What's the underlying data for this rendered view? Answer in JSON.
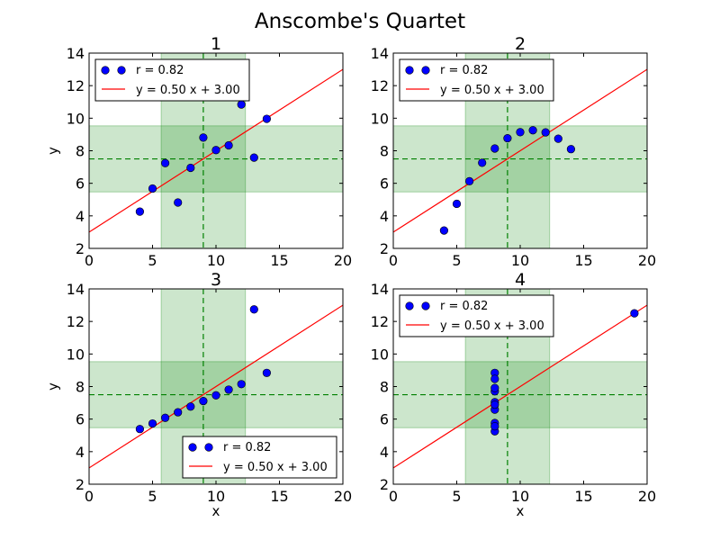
{
  "figure_title": "Anscombe's Quartet",
  "colors": {
    "points": "#0000ff",
    "fit_line": "#ff0000",
    "band": "#008000",
    "mean_line": "#008000"
  },
  "chart_data": [
    {
      "type": "scatter",
      "title": "1",
      "xlabel": "",
      "ylabel": "y",
      "xlim": [
        0,
        20
      ],
      "ylim": [
        2,
        14
      ],
      "x_ticks": [
        "0",
        "5",
        "10",
        "15",
        "20"
      ],
      "y_ticks": [
        "2",
        "4",
        "6",
        "8",
        "10",
        "12",
        "14"
      ],
      "series": [
        {
          "name": "r = 0.82",
          "x": [
            10,
            8,
            13,
            9,
            11,
            14,
            6,
            4,
            12,
            7,
            5
          ],
          "y": [
            8.04,
            6.95,
            7.58,
            8.81,
            8.33,
            9.96,
            7.24,
            4.26,
            10.84,
            4.82,
            5.68
          ]
        }
      ],
      "fit_line": {
        "label": "y = 0.50 x + 3.00",
        "slope": 0.5,
        "intercept": 3.0
      },
      "mean_x": 9.0,
      "std_x": 3.32,
      "mean_y": 7.5,
      "std_y": 2.03,
      "legend_position": "upper-left"
    },
    {
      "type": "scatter",
      "title": "2",
      "xlabel": "",
      "ylabel": "",
      "xlim": [
        0,
        20
      ],
      "ylim": [
        2,
        14
      ],
      "x_ticks": [
        "0",
        "5",
        "10",
        "15",
        "20"
      ],
      "y_ticks": [
        "2",
        "4",
        "6",
        "8",
        "10",
        "12",
        "14"
      ],
      "series": [
        {
          "name": "r = 0.82",
          "x": [
            10,
            8,
            13,
            9,
            11,
            14,
            6,
            4,
            12,
            7,
            5
          ],
          "y": [
            9.14,
            8.14,
            8.74,
            8.77,
            9.26,
            8.1,
            6.13,
            3.1,
            9.13,
            7.26,
            4.74
          ]
        }
      ],
      "fit_line": {
        "label": "y = 0.50 x + 3.00",
        "slope": 0.5,
        "intercept": 3.0
      },
      "mean_x": 9.0,
      "std_x": 3.32,
      "mean_y": 7.5,
      "std_y": 2.03,
      "legend_position": "upper-left"
    },
    {
      "type": "scatter",
      "title": "3",
      "xlabel": "x",
      "ylabel": "y",
      "xlim": [
        0,
        20
      ],
      "ylim": [
        2,
        14
      ],
      "x_ticks": [
        "0",
        "5",
        "10",
        "15",
        "20"
      ],
      "y_ticks": [
        "2",
        "4",
        "6",
        "8",
        "10",
        "12",
        "14"
      ],
      "series": [
        {
          "name": "r = 0.82",
          "x": [
            10,
            8,
            13,
            9,
            11,
            14,
            6,
            4,
            12,
            7,
            5
          ],
          "y": [
            7.46,
            6.77,
            12.74,
            7.11,
            7.81,
            8.84,
            6.08,
            5.39,
            8.15,
            6.42,
            5.73
          ]
        }
      ],
      "fit_line": {
        "label": "y = 0.50 x + 3.00",
        "slope": 0.5,
        "intercept": 3.0
      },
      "mean_x": 9.0,
      "std_x": 3.32,
      "mean_y": 7.5,
      "std_y": 2.03,
      "legend_position": "lower-right"
    },
    {
      "type": "scatter",
      "title": "4",
      "xlabel": "x",
      "ylabel": "",
      "xlim": [
        0,
        20
      ],
      "ylim": [
        2,
        14
      ],
      "x_ticks": [
        "0",
        "5",
        "10",
        "15",
        "20"
      ],
      "y_ticks": [
        "2",
        "4",
        "6",
        "8",
        "10",
        "12",
        "14"
      ],
      "series": [
        {
          "name": "r = 0.82",
          "x": [
            8,
            8,
            8,
            8,
            8,
            8,
            8,
            19,
            8,
            8,
            8
          ],
          "y": [
            6.58,
            5.76,
            7.71,
            8.84,
            8.47,
            7.04,
            5.25,
            12.5,
            5.56,
            7.91,
            6.89
          ]
        }
      ],
      "fit_line": {
        "label": "y = 0.50 x + 3.00",
        "slope": 0.5,
        "intercept": 3.0
      },
      "mean_x": 9.0,
      "std_x": 3.32,
      "mean_y": 7.5,
      "std_y": 2.03,
      "legend_position": "upper-left"
    }
  ]
}
